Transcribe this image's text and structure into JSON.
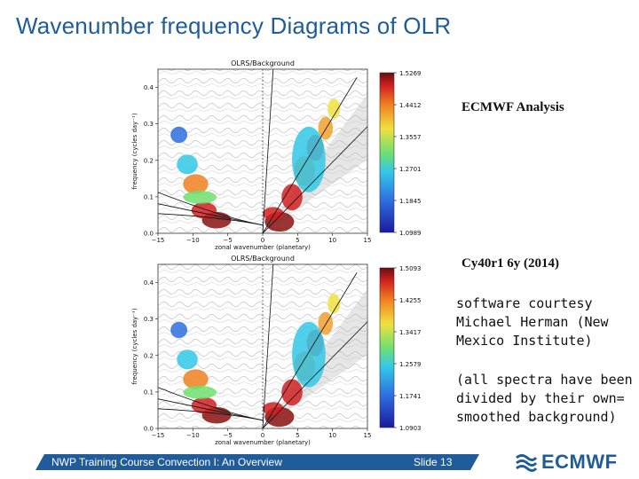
{
  "slide": {
    "title": "Wavenumber frequency Diagrams of OLR",
    "label_analysis": "ECMWF Analysis",
    "label_model": "Cy40r1 6y (2014)",
    "note1": "software courtesy\nMichael Herman (New\nMexico Institute)",
    "note2": "(all spectra have been\ndivided by their own=\nsmoothed background)",
    "footer_course": "NWP Training Course Convection I: An Overview",
    "footer_slide": "Slide 13",
    "logo_text": "ECMWF",
    "accent_color": "#1f5c99"
  },
  "chart_data": [
    {
      "type": "heatmap",
      "title": "OLRS/Background",
      "xlabel": "zonal wavenumber (planetary)",
      "ylabel": "frequency (cycles day⁻¹)",
      "xlim": [
        -15,
        15
      ],
      "ylim": [
        0,
        0.45
      ],
      "xticks": [
        "−15",
        "−10",
        "−5",
        "0",
        "5",
        "10",
        "15"
      ],
      "yticks": [
        "0.0",
        "0.1",
        "0.2",
        "0.3",
        "0.4"
      ],
      "colorbar_ticks": [
        "1.5269",
        "1.4412",
        "1.3557",
        "1.2701",
        "1.1845",
        "1.0989"
      ]
    },
    {
      "type": "heatmap",
      "title": "OLRS/Background",
      "xlabel": "zonal wavenumber (planetary)",
      "ylabel": "frequency (cycles day⁻¹)",
      "xlim": [
        -15,
        15
      ],
      "ylim": [
        0,
        0.45
      ],
      "xticks": [
        "−15",
        "−10",
        "−5",
        "0",
        "5",
        "10",
        "15"
      ],
      "yticks": [
        "0.0",
        "0.1",
        "0.2",
        "0.3",
        "0.4"
      ],
      "colorbar_ticks": [
        "1.5093",
        "1.4255",
        "1.3417",
        "1.2579",
        "1.1741",
        "1.0903"
      ]
    }
  ]
}
